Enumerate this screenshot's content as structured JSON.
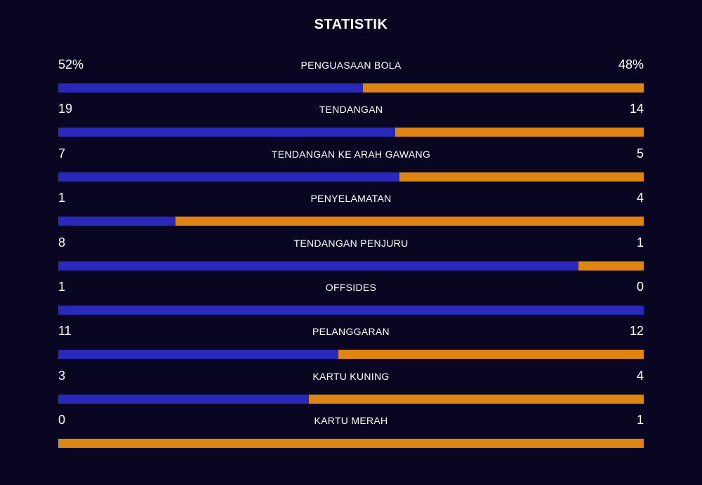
{
  "title": "STATISTIK",
  "colors": {
    "background": "#080620",
    "home": "#2a27bb",
    "away": "#df8514"
  },
  "stats": [
    {
      "name": "PENGUASAAN BOLA",
      "home": "52%",
      "away": "48%",
      "home_share": 0.52
    },
    {
      "name": "TENDANGAN",
      "home": "19",
      "away": "14",
      "home_share": 0.5757
    },
    {
      "name": "TENDANGAN KE ARAH GAWANG",
      "home": "7",
      "away": "5",
      "home_share": 0.5833
    },
    {
      "name": "PENYELAMATAN",
      "home": "1",
      "away": "4",
      "home_share": 0.2
    },
    {
      "name": "TENDANGAN PENJURU",
      "home": "8",
      "away": "1",
      "home_share": 0.8889
    },
    {
      "name": "OFFSIDES",
      "home": "1",
      "away": "0",
      "home_share": 1.0
    },
    {
      "name": "PELANGGARAN",
      "home": "11",
      "away": "12",
      "home_share": 0.4783
    },
    {
      "name": "KARTU KUNING",
      "home": "3",
      "away": "4",
      "home_share": 0.4286
    },
    {
      "name": "KARTU MERAH",
      "home": "0",
      "away": "1",
      "home_share": 0.0
    }
  ]
}
